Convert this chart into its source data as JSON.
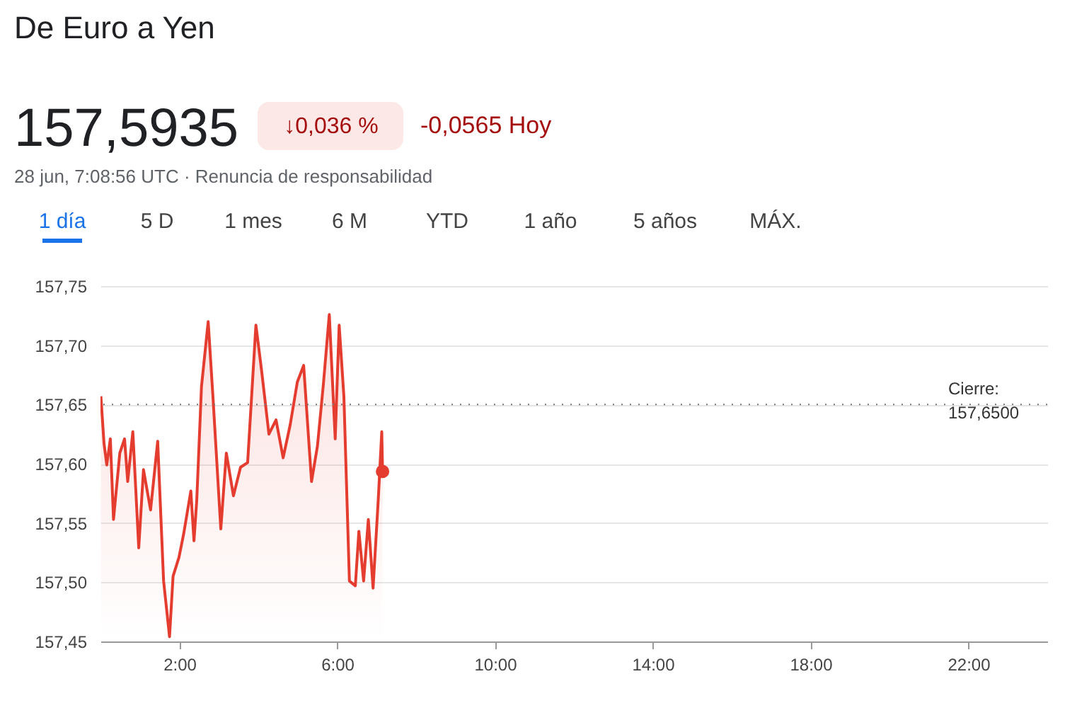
{
  "chart_data": {
    "type": "area",
    "title": "De Euro a Yen",
    "annotations": [
      "157,5935",
      "↓0,036 %",
      "-0,0565 Hoy",
      "28 jun, 7:08:56 UTC · Renuncia de responsabilidad",
      "1 día",
      "5 D",
      "1 mes",
      "6 M",
      "YTD",
      "1 año",
      "5 años",
      "MÁX."
    ],
    "series": [
      {
        "type": "area",
        "color": "#e53c30",
        "x": [
          0.01,
          0.09,
          0.16,
          0.25,
          0.33,
          0.49,
          0.61,
          0.69,
          0.82,
          0.97,
          1.09,
          1.27,
          1.45,
          1.6,
          1.75,
          1.84,
          1.99,
          2.11,
          2.29,
          2.37,
          2.44,
          2.56,
          2.73,
          2.85,
          3.05,
          3.19,
          3.37,
          3.55,
          3.73,
          3.94,
          4.09,
          4.27,
          4.45,
          4.63,
          4.81,
          4.99,
          5.15,
          5.35,
          5.5,
          5.65,
          5.8,
          5.95,
          6.05,
          6.17,
          6.31,
          6.46,
          6.55,
          6.67,
          6.79,
          6.91,
          7.04,
          7.13,
          7.15
        ],
        "values": [
          157.657,
          157.617,
          157.599,
          157.621,
          157.553,
          157.609,
          157.621,
          157.585,
          157.627,
          157.529,
          157.595,
          157.561,
          157.619,
          157.501,
          157.454,
          157.505,
          157.521,
          157.541,
          157.577,
          157.535,
          157.569,
          157.665,
          157.72,
          157.657,
          157.545,
          157.609,
          157.573,
          157.597,
          157.601,
          157.717,
          157.677,
          157.625,
          157.637,
          157.605,
          157.633,
          157.669,
          157.683,
          157.585,
          157.615,
          157.667,
          157.726,
          157.621,
          157.717,
          157.657,
          157.501,
          157.497,
          157.543,
          157.501,
          157.553,
          157.495,
          157.569,
          157.627,
          157.5935
        ]
      },
      {
        "type": "scatter",
        "color": "#e53c30",
        "x": [
          7.15
        ],
        "values": [
          157.5935
        ]
      }
    ],
    "xlim": [
      0,
      24
    ],
    "xticks": [
      {
        "value": 2,
        "label": "2:00"
      },
      {
        "value": 6,
        "label": "6:00"
      },
      {
        "value": 10,
        "label": "10:00"
      },
      {
        "value": 14,
        "label": "14:00"
      },
      {
        "value": 18,
        "label": "18:00"
      },
      {
        "value": 22,
        "label": "22:00"
      }
    ],
    "ylim": [
      157.45,
      157.75
    ],
    "yticks": [
      {
        "value": 157.45,
        "label": "157,45"
      },
      {
        "value": 157.5,
        "label": "157,50"
      },
      {
        "value": 157.55,
        "label": "157,55"
      },
      {
        "value": 157.6,
        "label": "157,60"
      },
      {
        "value": 157.65,
        "label": "157,65"
      },
      {
        "value": 157.7,
        "label": "157,70"
      },
      {
        "value": 157.75,
        "label": "157,75"
      }
    ],
    "ref_lines": [
      {
        "axis": "y",
        "value": 157.65,
        "label": "Cierre:\n157,6500",
        "color": "#777777",
        "line_style": "dotted"
      }
    ],
    "grid": "y"
  }
}
